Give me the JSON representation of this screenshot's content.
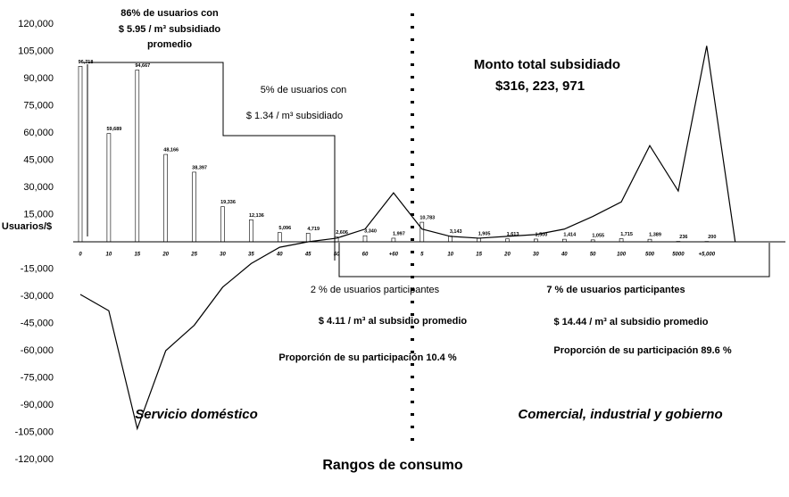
{
  "chart_data": {
    "type": "bar",
    "ylabel": "Usuarios/$",
    "xlabel": "Rangos de consumo",
    "categories": [
      "0",
      "10",
      "15",
      "20",
      "25",
      "30",
      "35",
      "40",
      "45",
      "50",
      "60",
      "+60",
      "5",
      "10",
      "15",
      "20",
      "30",
      "40",
      "50",
      "100",
      "500",
      "5000",
      "+5,000",
      null
    ],
    "series": [
      {
        "type": "bar",
        "color": "#000000",
        "values": [
          96718,
          59689,
          94667,
          48166,
          38397,
          19336,
          12136,
          5096,
          4719,
          2606,
          3340,
          1997,
          10783,
          3143,
          1905,
          1613,
          1500,
          1414,
          1055,
          1715,
          1389,
          236,
          200,
          null
        ],
        "value_labels": [
          "96,718",
          "59,689",
          "94,667",
          "48,166",
          "38,397",
          "19,336",
          "12,136",
          "5,096",
          "4,719",
          "2,606",
          "3,340",
          "1,997",
          "10,783",
          "3,143",
          "1,905",
          "1,613",
          "1,500",
          "1,414",
          "1,055",
          "1,715",
          "1,389",
          "236",
          "200",
          null
        ]
      },
      {
        "type": "line",
        "color": "#000000",
        "values": [
          -29000,
          -38000,
          -103000,
          -60000,
          -46000,
          -25000,
          -12000,
          -3000,
          0,
          2000,
          7000,
          27000,
          7000,
          3000,
          2000,
          3000,
          4000,
          7000,
          14000,
          22000,
          53000,
          28000,
          108000,
          0
        ]
      }
    ],
    "ylim": [
      -120000,
      120000
    ],
    "yticks": [
      {
        "value": 120000,
        "label": "120,000"
      },
      {
        "value": 105000,
        "label": "105,000"
      },
      {
        "value": 90000,
        "label": "90,000"
      },
      {
        "value": 75000,
        "label": "75,000"
      },
      {
        "value": 60000,
        "label": "60,000"
      },
      {
        "value": 45000,
        "label": "45,000"
      },
      {
        "value": 30000,
        "label": "30,000"
      },
      {
        "value": 15000,
        "label": "15,000"
      },
      {
        "value": -15000,
        "label": "-15,000"
      },
      {
        "value": -30000,
        "label": "-30,000"
      },
      {
        "value": -45000,
        "label": "-45,000"
      },
      {
        "value": -60000,
        "label": "-60,000"
      },
      {
        "value": -75000,
        "label": "-75,000"
      },
      {
        "value": -90000,
        "label": "-90,000"
      },
      {
        "value": -105000,
        "label": "-105,000"
      },
      {
        "value": -120000,
        "label": "-120,000"
      }
    ],
    "annotations": [
      "86% de usuarios con",
      "$ 5.95 / m³ subsidiado",
      "promedio",
      "5% de usuarios con",
      "$ 1.34 / m³ subsidiado",
      "Monto total subsidiado",
      "$316, 223, 971",
      "2 % de usuarios participantes",
      "$ 4.11 / m³ al subsidio promedio",
      "Proporción de su participación 10.4 %",
      "7 % de usuarios participantes",
      "$ 14.44 / m³ al subsidio promedio",
      "Proporción de su participación 89.6 %"
    ],
    "sections": [
      "Servicio doméstico",
      "Comercial, industrial y gobierno"
    ]
  }
}
